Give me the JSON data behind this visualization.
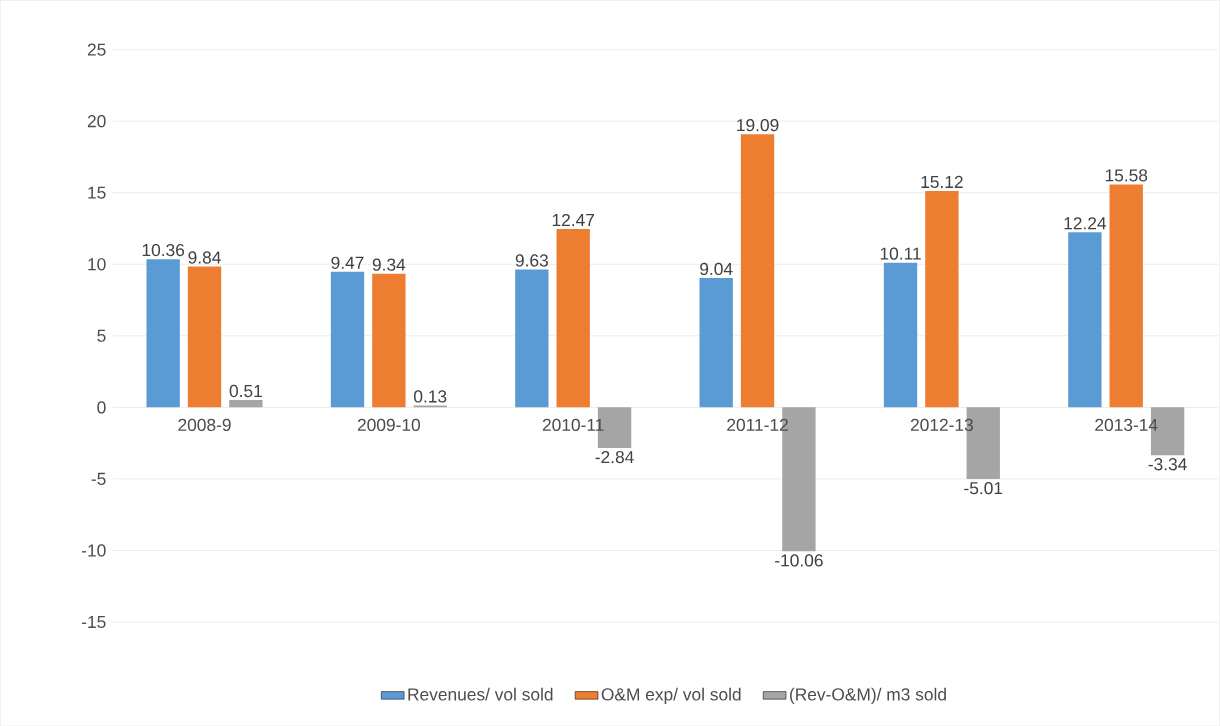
{
  "chart_data": {
    "type": "bar",
    "categories": [
      "2008-9",
      "2009-10",
      "2010-11",
      "2011-12",
      "2012-13",
      "2013-14"
    ],
    "series": [
      {
        "name": "Revenues/ vol sold",
        "color": "#5b9bd5",
        "values": [
          10.36,
          9.47,
          9.63,
          9.04,
          10.11,
          12.24
        ]
      },
      {
        "name": "O&M  exp/ vol sold",
        "color": "#ed7d31",
        "values": [
          9.84,
          9.34,
          12.47,
          19.09,
          15.12,
          15.58
        ]
      },
      {
        "name": "(Rev-O&M)/ m3 sold",
        "color": "#a5a5a5",
        "values": [
          0.51,
          0.13,
          -2.84,
          -10.06,
          -5.01,
          -3.34
        ]
      }
    ],
    "ylim": [
      -15,
      25
    ],
    "yticks": [
      -15,
      -10,
      -5,
      0,
      5,
      10,
      15,
      20,
      25
    ],
    "grid": "y",
    "legend": "bottom",
    "data_labels": true
  }
}
